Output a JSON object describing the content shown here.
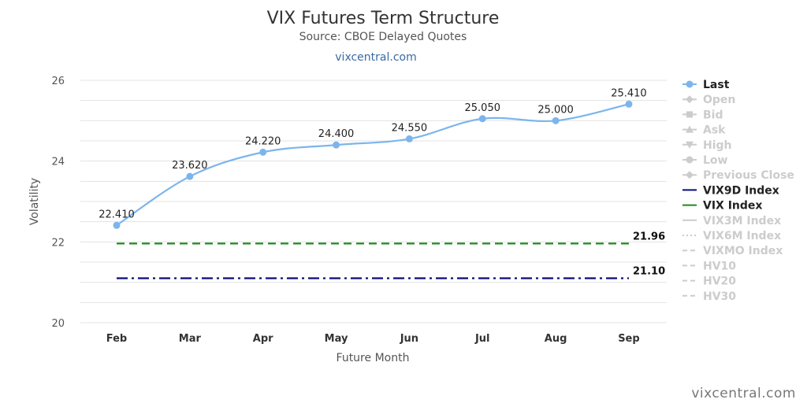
{
  "chart_data": {
    "type": "line",
    "title": "VIX Futures Term Structure",
    "subtitle": "Source: CBOE Delayed Quotes",
    "source_link": "vixcentral.com",
    "xlabel": "Future Month",
    "ylabel": "Volatility",
    "ylim": [
      20,
      26
    ],
    "yticks": [
      "20",
      "22",
      "24",
      "26"
    ],
    "grid": true,
    "categories": [
      "Feb",
      "Mar",
      "Apr",
      "May",
      "Jun",
      "Jul",
      "Aug",
      "Sep"
    ],
    "series": [
      {
        "name": "Last",
        "color": "#7cb5ec",
        "values": [
          22.41,
          23.62,
          24.22,
          24.4,
          24.55,
          25.05,
          25.0,
          25.41
        ],
        "labels": [
          "22.410",
          "23.620",
          "24.220",
          "24.400",
          "24.550",
          "25.050",
          "25.000",
          "25.410"
        ]
      }
    ],
    "reference_lines": [
      {
        "name": "VIX Index",
        "color": "#1a8c1a",
        "style": "dashed",
        "value": 21.96,
        "label": "21.96"
      },
      {
        "name": "VIX9D Index",
        "color": "#0a0a7a",
        "style": "dash-dot",
        "value": 21.1,
        "label": "21.10"
      }
    ],
    "legend_position": "right",
    "legend": [
      {
        "name": "Last",
        "active": true,
        "color": "#7cb5ec",
        "marker": "circle"
      },
      {
        "name": "Open",
        "active": false,
        "marker": "diamond"
      },
      {
        "name": "Bid",
        "active": false,
        "marker": "square"
      },
      {
        "name": "Ask",
        "active": false,
        "marker": "triangle"
      },
      {
        "name": "High",
        "active": false,
        "marker": "triangle-down"
      },
      {
        "name": "Low",
        "active": false,
        "marker": "circle"
      },
      {
        "name": "Previous Close",
        "active": false,
        "marker": "diamond"
      },
      {
        "name": "VIX9D Index",
        "active": true,
        "color": "#0a0a7a",
        "marker": "line"
      },
      {
        "name": "VIX Index",
        "active": true,
        "color": "#1a8c1a",
        "marker": "line"
      },
      {
        "name": "VIX3M Index",
        "active": false,
        "marker": "line"
      },
      {
        "name": "VIX6M Index",
        "active": false,
        "marker": "dotted"
      },
      {
        "name": "VIXMO Index",
        "active": false,
        "marker": "dashed"
      },
      {
        "name": "HV10",
        "active": false,
        "marker": "dashed"
      },
      {
        "name": "HV20",
        "active": false,
        "marker": "dashed"
      },
      {
        "name": "HV30",
        "active": false,
        "marker": "dashed"
      }
    ],
    "inactive_color": "#cccccc"
  },
  "credit": "vixcentral.com"
}
